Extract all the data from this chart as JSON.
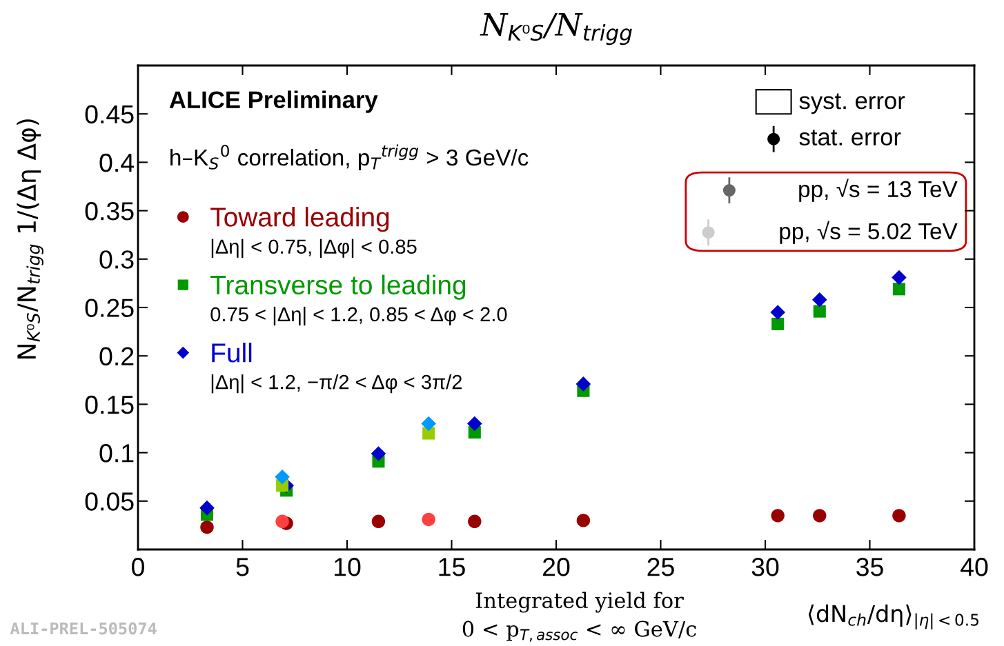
{
  "chart_data": {
    "type": "scatter",
    "title": "N$_{K⁰S}$/N$_{trigg}$",
    "xlabel": "⟨dN$_{ch}$/dη⟩$_{|η|<0.5}$",
    "ylabel": "N$_{K⁰S}$/N$_{trigg}$ 1/(Δη Δφ)",
    "xlim": [
      0,
      40
    ],
    "xticks": [
      0,
      5,
      10,
      15,
      20,
      25,
      30,
      35,
      40
    ],
    "ylim": [
      0,
      0.5
    ],
    "yticks": [
      0.05,
      0.1,
      0.15,
      0.2,
      0.25,
      0.3,
      0.35,
      0.4,
      0.45
    ],
    "grid": false,
    "legend": "top left",
    "series": [
      {
        "name": "Toward leading",
        "color": "#990000",
        "marker": "circle",
        "x": [
          3.3,
          7.1,
          11.5,
          16.1,
          21.3,
          30.6,
          32.6,
          36.4
        ],
        "values": [
          0.023,
          0.027,
          0.029,
          0.029,
          0.03,
          0.035,
          0.035,
          0.035
        ]
      },
      {
        "color": "#ff4040",
        "marker": "circle",
        "x": [
          6.9,
          13.9
        ],
        "values": [
          0.029,
          0.031
        ]
      },
      {
        "name": "Transverse to leading",
        "color": "#009900",
        "marker": "square",
        "x": [
          3.3,
          7.1,
          11.5,
          16.1,
          21.3,
          30.6,
          32.6,
          36.4
        ],
        "values": [
          0.036,
          0.061,
          0.091,
          0.121,
          0.164,
          0.233,
          0.246,
          0.269
        ]
      },
      {
        "color": "#99cc00",
        "marker": "square",
        "x": [
          6.9,
          13.9
        ],
        "values": [
          0.066,
          0.12
        ]
      },
      {
        "name": "Full",
        "color": "#0000cc",
        "marker": "diamond",
        "x": [
          3.3,
          7.1,
          11.5,
          16.1,
          21.3,
          30.6,
          32.6,
          36.4
        ],
        "values": [
          0.043,
          0.066,
          0.099,
          0.13,
          0.171,
          0.245,
          0.258,
          0.281
        ]
      },
      {
        "color": "#0099ff",
        "marker": "diamond",
        "x": [
          6.9,
          13.9
        ],
        "values": [
          0.075,
          0.13
        ]
      }
    ],
    "annotations": [
      "ALICE Preliminary",
      "h–K$_{S}$$^{0}$ correlation, p$_{T}$$^{trigg}$ > 3 GeV/c",
      "|Δη| < 0.75, |Δφ| < 0.85",
      "0.75 < |Δη| < 1.2, 0.85 < Δφ < 2.0",
      "|Δη| < 1.2, −π/2 < Δφ < 3π/2",
      "syst. error",
      "stat. error",
      "pp, √s = 13 TeV",
      "pp, √s = 5.02 TeV",
      "Integrated yield for\n0 < p$_{T,assoc}$ < ∞ GeV/c",
      "ALI-PREL-505074"
    ]
  }
}
